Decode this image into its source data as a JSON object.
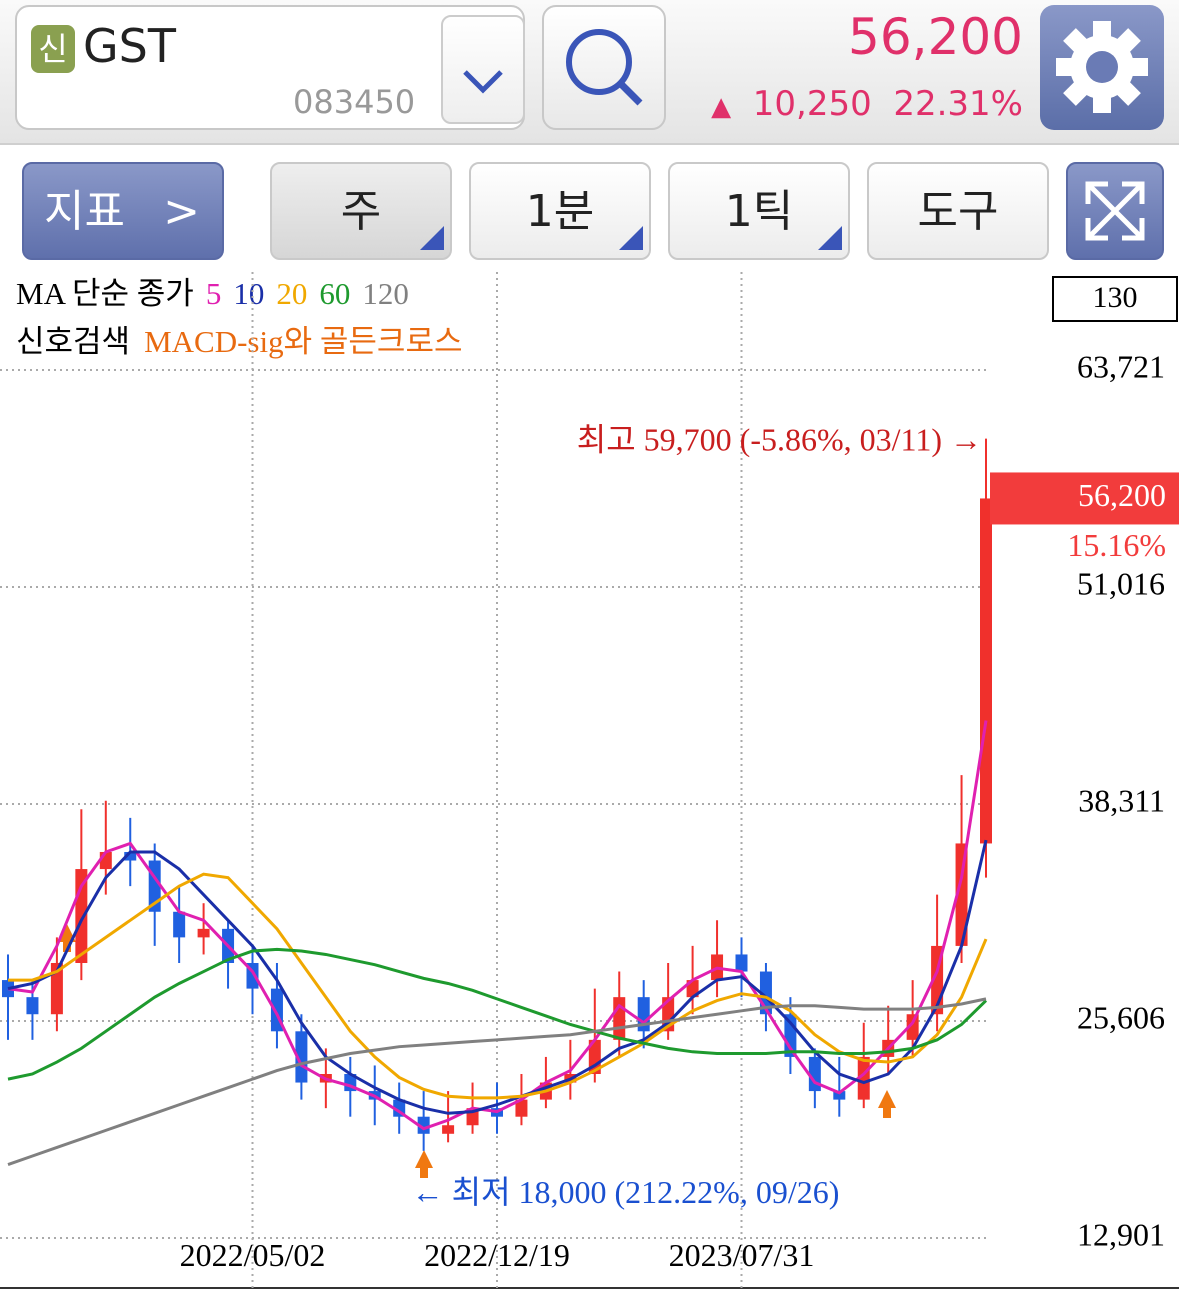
{
  "header": {
    "badge": "신",
    "name": "GST",
    "code": "083450",
    "price": "56,200",
    "change": "10,250",
    "change_pct": "22.31%"
  },
  "toolbar": {
    "indicator": "지표",
    "period": "주",
    "minute": "1분",
    "tick": "1틱",
    "tools": "도구"
  },
  "chart_data": {
    "type": "candlestick",
    "legend_title": "MA 단순 종가",
    "signal_title": "신호검색",
    "signal_name": "MACD-sig와 골든크로스",
    "bar_count": 130,
    "categories": [
      null,
      null,
      null,
      null,
      null,
      null,
      null,
      null,
      null,
      null,
      "2022/05/02",
      null,
      null,
      null,
      null,
      null,
      null,
      null,
      null,
      null,
      "2022/12/19",
      null,
      null,
      null,
      null,
      null,
      null,
      null,
      null,
      null,
      "2023/07/31",
      null,
      null,
      null,
      null,
      null,
      null,
      null,
      null,
      null,
      null
    ],
    "open": [
      28000,
      27000,
      26000,
      29000,
      34500,
      35500,
      35000,
      32000,
      30500,
      31000,
      29000,
      27500,
      25000,
      22000,
      22500,
      21500,
      21000,
      20000,
      19000,
      19500,
      20500,
      20000,
      21000,
      22000,
      22500,
      24500,
      27000,
      25000,
      27000,
      28000,
      29500,
      28500,
      26000,
      23500,
      21500,
      21000,
      23500,
      24500,
      26000,
      30000,
      36000
    ],
    "high": [
      29500,
      28000,
      30500,
      38000,
      38500,
      37500,
      36000,
      33500,
      32500,
      31500,
      30000,
      29000,
      26000,
      24000,
      23500,
      23000,
      22000,
      21500,
      21500,
      22000,
      22000,
      22500,
      23500,
      24500,
      27500,
      28500,
      28000,
      29000,
      30000,
      31500,
      30500,
      29000,
      27000,
      24000,
      23500,
      25500,
      26500,
      28000,
      33000,
      40000,
      59700
    ],
    "low": [
      24500,
      24500,
      25000,
      28000,
      33000,
      33500,
      30000,
      29000,
      29500,
      27500,
      26000,
      24000,
      21000,
      20500,
      20000,
      19500,
      19000,
      18000,
      18500,
      19000,
      19000,
      19500,
      20500,
      21000,
      22000,
      23500,
      24000,
      24500,
      26000,
      27000,
      27000,
      25000,
      22500,
      20500,
      20000,
      20500,
      22500,
      23500,
      25000,
      29000,
      34000
    ],
    "close": [
      27000,
      26000,
      29000,
      34500,
      35500,
      35000,
      32000,
      30500,
      31000,
      29000,
      27500,
      25000,
      22000,
      22500,
      21500,
      21000,
      20000,
      19000,
      19500,
      20500,
      20000,
      21000,
      22000,
      22500,
      24500,
      27000,
      25000,
      27000,
      28000,
      29500,
      28500,
      26000,
      23500,
      21500,
      21000,
      23500,
      24500,
      26000,
      30000,
      36000,
      56200
    ],
    "up_color": "#f0302c",
    "down_color": "#2060e0",
    "series": [
      {
        "name": "5",
        "color": "#e020b0",
        "values": [
          27500,
          27300,
          30000,
          33500,
          35500,
          36000,
          34000,
          32000,
          31500,
          30000,
          28500,
          26000,
          23000,
          22200,
          21800,
          21200,
          20300,
          19300,
          19800,
          20500,
          20300,
          21000,
          22000,
          22700,
          24500,
          26500,
          25500,
          26800,
          28000,
          28700,
          28500,
          26300,
          24000,
          22000,
          21400,
          22500,
          24000,
          25500,
          28500,
          34000,
          43200
        ]
      },
      {
        "name": "10",
        "color": "#1a2fa8",
        "values": [
          27500,
          27800,
          28500,
          31500,
          34000,
          35500,
          35500,
          34500,
          33000,
          31500,
          30000,
          28000,
          25500,
          23500,
          22500,
          21700,
          21000,
          20500,
          20200,
          20300,
          20700,
          21200,
          21700,
          22200,
          23000,
          24000,
          24500,
          25500,
          27000,
          28000,
          28200,
          27000,
          25500,
          23800,
          22500,
          22000,
          22500,
          24000,
          26500,
          30000,
          36200
        ]
      },
      {
        "name": "20",
        "color": "#f0a800",
        "values": [
          28000,
          28000,
          28500,
          29500,
          30500,
          31500,
          32500,
          33500,
          34200,
          34000,
          32500,
          31000,
          29000,
          27000,
          25000,
          23500,
          22300,
          21600,
          21200,
          21100,
          21100,
          21200,
          21500,
          22000,
          22700,
          23500,
          24300,
          25300,
          26200,
          26800,
          27200,
          27000,
          26200,
          24800,
          23800,
          23300,
          23200,
          23500,
          24800,
          27000,
          30400
        ]
      },
      {
        "name": "60",
        "color": "#1e9a2e",
        "values": [
          22200,
          22500,
          23200,
          24000,
          25000,
          26000,
          27000,
          27800,
          28500,
          29200,
          29700,
          29800,
          29700,
          29500,
          29200,
          28900,
          28500,
          28100,
          27800,
          27400,
          26900,
          26400,
          25900,
          25400,
          25000,
          24600,
          24300,
          24000,
          23800,
          23700,
          23700,
          23700,
          23800,
          23800,
          23700,
          23700,
          23800,
          24000,
          24500,
          25400,
          26800
        ]
      },
      {
        "name": "120",
        "color": "#808080",
        "values": [
          17200,
          17700,
          18200,
          18700,
          19200,
          19700,
          20200,
          20700,
          21200,
          21700,
          22200,
          22700,
          23100,
          23400,
          23700,
          23900,
          24100,
          24200,
          24300,
          24400,
          24500,
          24600,
          24700,
          24800,
          25000,
          25200,
          25400,
          25600,
          25800,
          26000,
          26200,
          26400,
          26500,
          26500,
          26400,
          26300,
          26300,
          26300,
          26400,
          26600,
          26900
        ]
      }
    ],
    "ylim": [
      9970,
      69460
    ],
    "yticks": [
      {
        "value": 63721,
        "label": "63,721"
      },
      {
        "value": 51016,
        "label": "51,016"
      },
      {
        "value": 38311,
        "label": "38,311"
      },
      {
        "value": 25606,
        "label": "25,606"
      },
      {
        "value": 12901,
        "label": "12,901"
      }
    ],
    "grid": true,
    "price_tag": {
      "value": 56200,
      "label": "56,200",
      "pct": "15.16%"
    },
    "annotations": {
      "high": "최고 59,700 (-5.86%, 03/11) →",
      "low": "← 최저 18,000 (212.22%, 09/26)"
    }
  }
}
